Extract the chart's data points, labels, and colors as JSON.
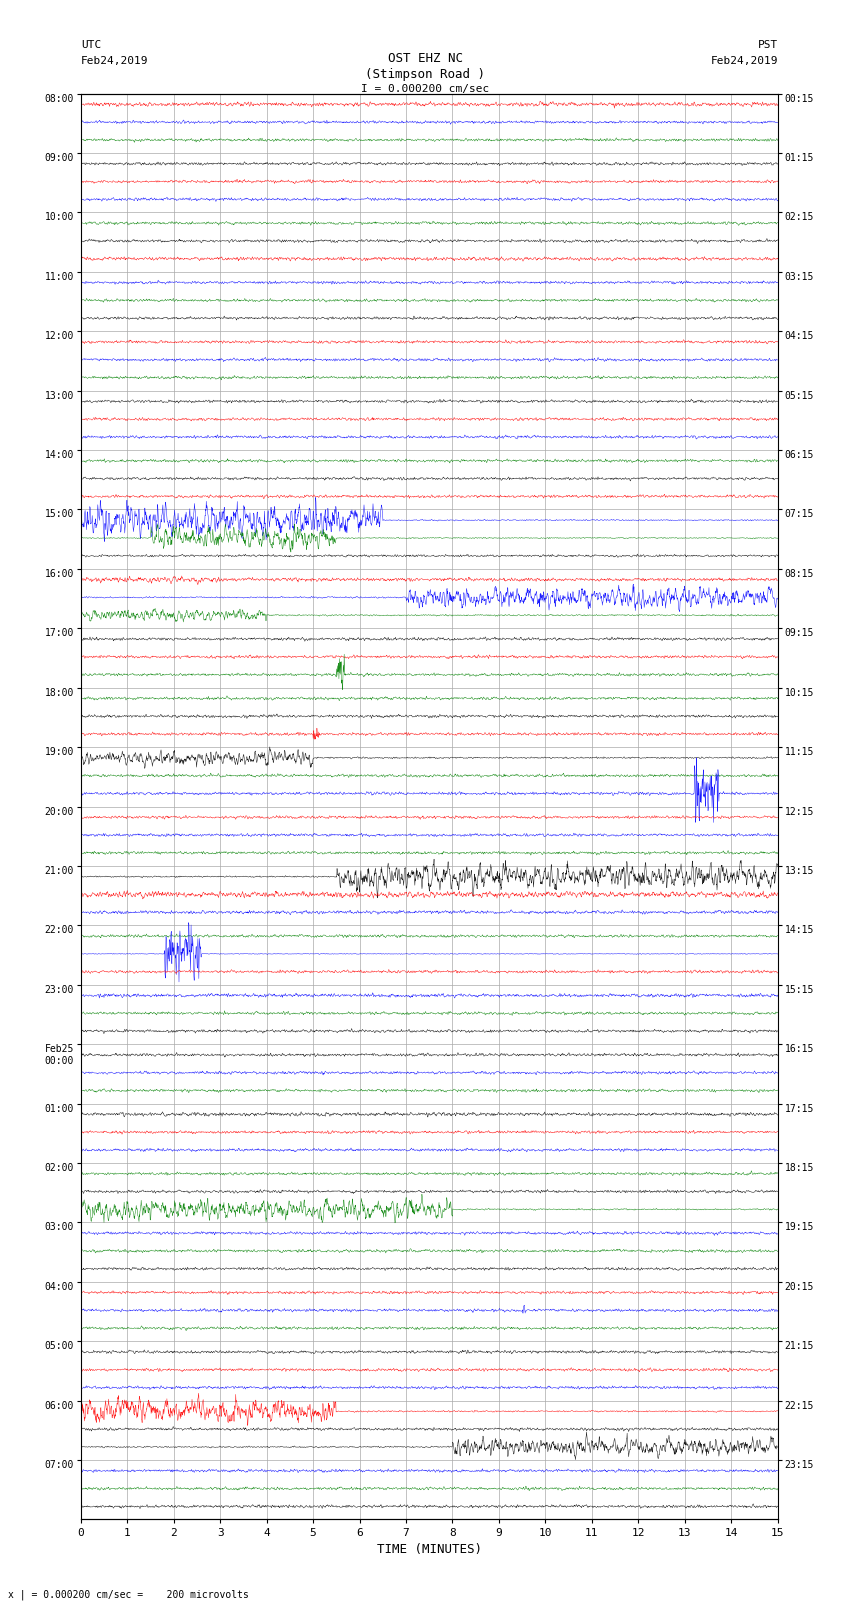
{
  "title_line1": "OST EHZ NC",
  "title_line2": "(Stimpson Road )",
  "scale_text": "I = 0.000200 cm/sec",
  "left_label_line1": "UTC",
  "left_label_line2": "Feb24,2019",
  "right_label_line1": "PST",
  "right_label_line2": "Feb24,2019",
  "bottom_label": "x | = 0.000200 cm/sec =    200 microvolts",
  "xlabel": "TIME (MINUTES)",
  "left_times": [
    "08:00",
    "09:00",
    "10:00",
    "11:00",
    "12:00",
    "13:00",
    "14:00",
    "15:00",
    "16:00",
    "17:00",
    "18:00",
    "19:00",
    "20:00",
    "21:00",
    "22:00",
    "23:00",
    "Feb25\n00:00",
    "01:00",
    "02:00",
    "03:00",
    "04:00",
    "05:00",
    "06:00",
    "07:00"
  ],
  "right_times": [
    "00:15",
    "01:15",
    "02:15",
    "03:15",
    "04:15",
    "05:15",
    "06:15",
    "07:15",
    "08:15",
    "09:15",
    "10:15",
    "11:15",
    "12:15",
    "13:15",
    "14:15",
    "15:15",
    "16:15",
    "17:15",
    "18:15",
    "19:15",
    "20:15",
    "21:15",
    "22:15",
    "23:15"
  ],
  "num_rows": 24,
  "minutes_per_row": 15,
  "lines_per_row": 3,
  "background_color": "#ffffff",
  "grid_color": "#aaaaaa",
  "fig_width": 8.5,
  "fig_height": 16.13,
  "dpi": 100
}
